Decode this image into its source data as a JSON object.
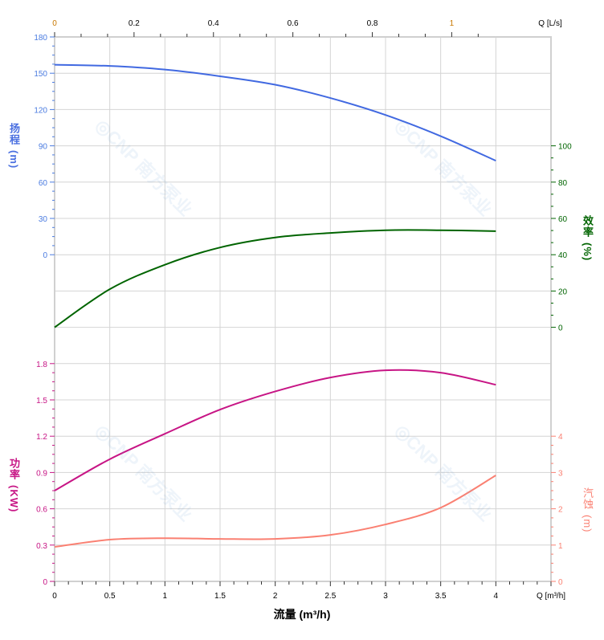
{
  "chart_data": {
    "type": "line",
    "x": [
      0,
      0.5,
      1,
      1.5,
      2,
      2.5,
      3,
      3.5,
      4
    ],
    "xlabel": "流量 (m³/h)",
    "x_unit_label": "Q [m³/h]",
    "xlim": [
      0,
      4.5
    ],
    "x_ticks": [
      "0",
      "0.5",
      "1",
      "1.5",
      "2",
      "2.5",
      "3",
      "3.5",
      "4"
    ],
    "top_axis": {
      "unit_label": "Q [L/s]",
      "ticks": [
        "0",
        "0.2",
        "0.4",
        "0.6",
        "0.8",
        "1"
      ],
      "lim": [
        0,
        1.25
      ]
    },
    "grid": true,
    "series": [
      {
        "name": "扬程",
        "axis": "head",
        "color": "#4169e1",
        "values": [
          157,
          156,
          153,
          147.5,
          140.5,
          129.5,
          115.5,
          98,
          77.7
        ]
      },
      {
        "name": "效率",
        "axis": "efficiency",
        "color": "#006400",
        "values": [
          0,
          21,
          34.5,
          44,
          49.5,
          52,
          53.5,
          53.5,
          53
        ]
      },
      {
        "name": "功率",
        "axis": "power",
        "color": "#c71585",
        "values": [
          0.75,
          1.01,
          1.22,
          1.42,
          1.57,
          1.685,
          1.745,
          1.725,
          1.625
        ]
      },
      {
        "name": "汽蚀",
        "axis": "npsh",
        "color": "#fa8072",
        "values": [
          0.95,
          1.15,
          1.19,
          1.17,
          1.17,
          1.28,
          1.57,
          2.03,
          2.92
        ]
      }
    ],
    "axes": {
      "head": {
        "label_chars": [
          "扬",
          "程"
        ],
        "unit": "(m)",
        "ticks": [
          "0",
          "30",
          "60",
          "90",
          "120",
          "150",
          "180"
        ],
        "lim": [
          0,
          180
        ],
        "side": "left",
        "color": "#4a7be0"
      },
      "efficiency": {
        "label_chars": [
          "效",
          "率"
        ],
        "unit": "(%)",
        "ticks": [
          "0",
          "20",
          "40",
          "60",
          "80",
          "100"
        ],
        "lim": [
          0,
          100
        ],
        "side": "right",
        "color": "#006400"
      },
      "power": {
        "label_chars": [
          "功",
          "率"
        ],
        "unit": "(KW)",
        "ticks": [
          "0",
          "0.3",
          "0.6",
          "0.9",
          "1.2",
          "1.5",
          "1.8"
        ],
        "lim": [
          0,
          1.8
        ],
        "side": "left",
        "color": "#c71585"
      },
      "npsh": {
        "label_chars": [
          "汽",
          "蚀"
        ],
        "unit": "(m)",
        "ticks": [
          "0",
          "1",
          "2",
          "3",
          "4"
        ],
        "lim": [
          0,
          4
        ],
        "side": "right",
        "color": "#fa8072"
      }
    },
    "watermark": "CNP 南方泵业"
  }
}
